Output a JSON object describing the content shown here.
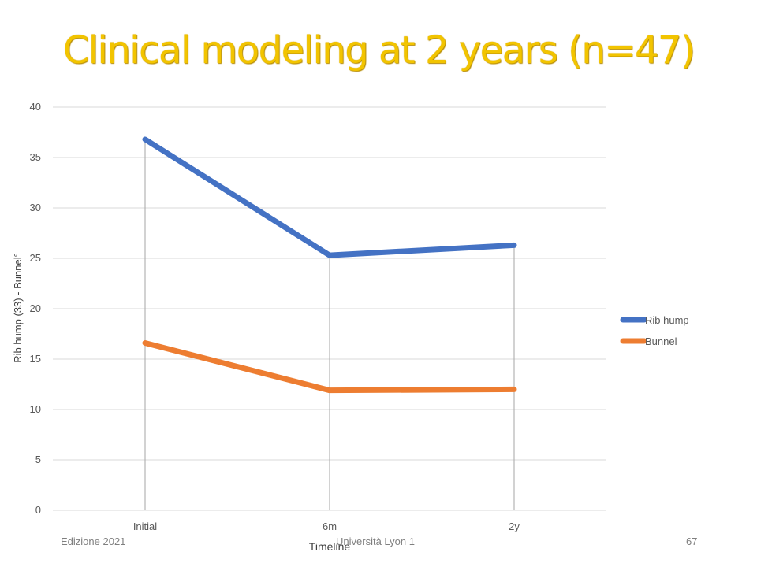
{
  "slide": {
    "title": "Clinical modeling at 2 years (n=47)",
    "footer_left": "Edizione 2021",
    "footer_center": "Università Lyon 1",
    "page_number": "67"
  },
  "colors": {
    "title": "#f2c400",
    "rib_hump": "#4472c4",
    "bunnel": "#ed7d31",
    "grid": "#d9d9d9",
    "drop_lines": "#a6a6a6"
  },
  "chart_data": {
    "type": "line",
    "categories": [
      "Initial",
      "6m",
      "2y"
    ],
    "series": [
      {
        "name": "Rib hump",
        "values": [
          36.8,
          25.3,
          26.3
        ]
      },
      {
        "name": "Bunnel",
        "values": [
          16.6,
          11.9,
          12.0
        ]
      }
    ],
    "xlabel": "Timeline",
    "ylabel": "Rib hump (33) - Bunnel°",
    "ylim": [
      0,
      40
    ],
    "yticks": [
      0,
      5,
      10,
      15,
      20,
      25,
      30,
      35,
      40
    ],
    "grid": true,
    "drop_lines": true,
    "legend_position": "right"
  }
}
